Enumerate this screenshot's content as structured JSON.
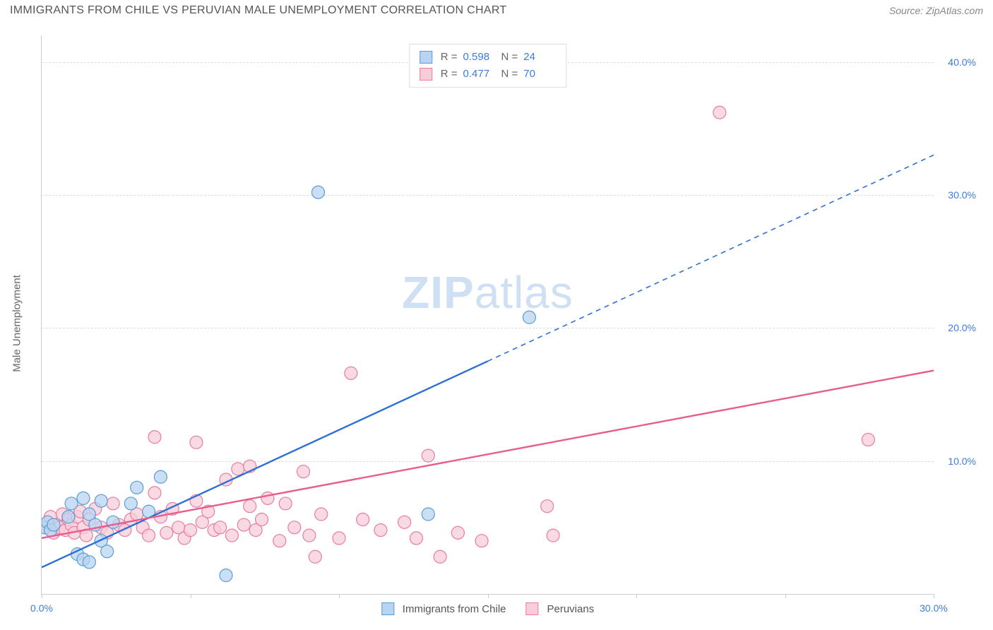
{
  "header": {
    "title": "IMMIGRANTS FROM CHILE VS PERUVIAN MALE UNEMPLOYMENT CORRELATION CHART",
    "source": "Source: ZipAtlas.com"
  },
  "watermark": {
    "zip": "ZIP",
    "atlas": "atlas"
  },
  "yaxis": {
    "title": "Male Unemployment"
  },
  "chart": {
    "type": "scatter",
    "xlim": [
      0,
      30
    ],
    "ylim": [
      0,
      42
    ],
    "xtick_positions": [
      0,
      5,
      10,
      15,
      20,
      25,
      30
    ],
    "xtick_labels": [
      "0.0%",
      "",
      "",
      "",
      "",
      "",
      "30.0%"
    ],
    "ytick_positions": [
      10,
      20,
      30,
      40
    ],
    "ytick_labels": [
      "10.0%",
      "20.0%",
      "30.0%",
      "40.0%"
    ],
    "grid_color": "#dddddd",
    "axis_color": "#cccccc",
    "background_color": "#ffffff",
    "tick_label_color": "#3b7dd8",
    "tick_label_fontsize": 14,
    "series": [
      {
        "name": "Immigrants from Chile",
        "fill_color": "#b8d4f0",
        "stroke_color": "#5b9bd5",
        "line_color": "#2e6fd6",
        "marker_radius": 9,
        "marker_opacity": 0.75,
        "R": "0.598",
        "N": "24",
        "trend": {
          "x1": 0,
          "y1": 2.0,
          "x2": 30,
          "y2": 33.0,
          "solid_until_x": 15
        },
        "points": [
          [
            0.1,
            5.0
          ],
          [
            0.2,
            5.4
          ],
          [
            0.3,
            4.8
          ],
          [
            0.4,
            5.2
          ],
          [
            0.9,
            5.8
          ],
          [
            1.0,
            6.8
          ],
          [
            1.2,
            3.0
          ],
          [
            1.4,
            2.6
          ],
          [
            1.6,
            2.4
          ],
          [
            1.4,
            7.2
          ],
          [
            1.6,
            6.0
          ],
          [
            1.8,
            5.2
          ],
          [
            2.0,
            4.0
          ],
          [
            2.2,
            3.2
          ],
          [
            2.0,
            7.0
          ],
          [
            2.4,
            5.4
          ],
          [
            3.0,
            6.8
          ],
          [
            3.2,
            8.0
          ],
          [
            3.6,
            6.2
          ],
          [
            4.0,
            8.8
          ],
          [
            6.2,
            1.4
          ],
          [
            9.3,
            30.2
          ],
          [
            13.0,
            6.0
          ],
          [
            16.4,
            20.8
          ]
        ]
      },
      {
        "name": "Peruvians",
        "fill_color": "#f7cdd9",
        "stroke_color": "#e97ca1",
        "line_color": "#e85d8e",
        "marker_radius": 9,
        "marker_opacity": 0.75,
        "R": "0.477",
        "N": "70",
        "trend": {
          "x1": 0,
          "y1": 4.2,
          "x2": 30,
          "y2": 16.8,
          "solid_until_x": 30
        },
        "points": [
          [
            0.1,
            5.0
          ],
          [
            0.2,
            5.4
          ],
          [
            0.3,
            5.8
          ],
          [
            0.4,
            4.6
          ],
          [
            0.5,
            5.2
          ],
          [
            0.6,
            5.0
          ],
          [
            0.7,
            6.0
          ],
          [
            0.8,
            4.8
          ],
          [
            0.9,
            5.6
          ],
          [
            1.0,
            5.2
          ],
          [
            1.1,
            4.6
          ],
          [
            1.2,
            5.8
          ],
          [
            1.3,
            6.2
          ],
          [
            1.4,
            5.0
          ],
          [
            1.5,
            4.4
          ],
          [
            1.6,
            5.6
          ],
          [
            1.8,
            6.4
          ],
          [
            2.0,
            5.0
          ],
          [
            2.2,
            4.6
          ],
          [
            2.4,
            6.8
          ],
          [
            2.6,
            5.2
          ],
          [
            2.8,
            4.8
          ],
          [
            3.0,
            5.6
          ],
          [
            3.2,
            6.0
          ],
          [
            3.4,
            5.0
          ],
          [
            3.6,
            4.4
          ],
          [
            3.8,
            7.6
          ],
          [
            3.8,
            11.8
          ],
          [
            4.0,
            5.8
          ],
          [
            4.2,
            4.6
          ],
          [
            4.4,
            6.4
          ],
          [
            4.6,
            5.0
          ],
          [
            4.8,
            4.2
          ],
          [
            5.0,
            4.8
          ],
          [
            5.2,
            7.0
          ],
          [
            5.2,
            11.4
          ],
          [
            5.4,
            5.4
          ],
          [
            5.6,
            6.2
          ],
          [
            5.8,
            4.8
          ],
          [
            6.0,
            5.0
          ],
          [
            6.2,
            8.6
          ],
          [
            6.4,
            4.4
          ],
          [
            6.6,
            9.4
          ],
          [
            6.8,
            5.2
          ],
          [
            7.0,
            6.6
          ],
          [
            7.0,
            9.6
          ],
          [
            7.2,
            4.8
          ],
          [
            7.4,
            5.6
          ],
          [
            7.6,
            7.2
          ],
          [
            8.0,
            4.0
          ],
          [
            8.2,
            6.8
          ],
          [
            8.5,
            5.0
          ],
          [
            8.8,
            9.2
          ],
          [
            9.0,
            4.4
          ],
          [
            9.2,
            2.8
          ],
          [
            9.4,
            6.0
          ],
          [
            10.0,
            4.2
          ],
          [
            10.4,
            16.6
          ],
          [
            10.8,
            5.6
          ],
          [
            11.4,
            4.8
          ],
          [
            12.2,
            5.4
          ],
          [
            12.6,
            4.2
          ],
          [
            13.0,
            10.4
          ],
          [
            13.4,
            2.8
          ],
          [
            14.0,
            4.6
          ],
          [
            14.8,
            4.0
          ],
          [
            17.0,
            6.6
          ],
          [
            17.2,
            4.4
          ],
          [
            22.8,
            36.2
          ],
          [
            27.8,
            11.6
          ]
        ]
      }
    ]
  },
  "legend_bottom": {
    "items": [
      {
        "label": "Immigrants from Chile",
        "fill": "#b8d4f0",
        "stroke": "#5b9bd5"
      },
      {
        "label": "Peruvians",
        "fill": "#f7cdd9",
        "stroke": "#e97ca1"
      }
    ]
  },
  "legend_top": {
    "r_label": "R =",
    "n_label": "N ="
  }
}
